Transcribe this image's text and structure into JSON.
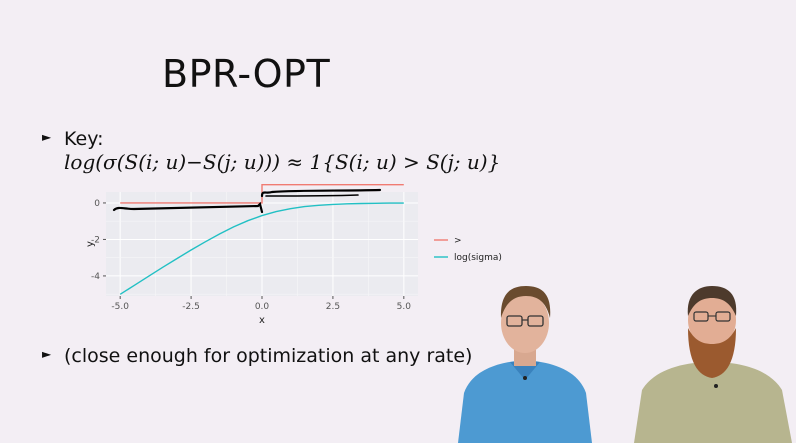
{
  "slide": {
    "title": "BPR-OPT",
    "bullet1_label": "Key:",
    "formula": "log(σ(S(i; u)−S(j; u))) ≈ 1{S(i; u) > S(j; u)}",
    "bullet2_text": "(close enough for optimization at any rate)",
    "bullet_marker": "►"
  },
  "chart_data": {
    "type": "line",
    "title": "",
    "xlabel": "x",
    "ylabel": "y",
    "xlim": [
      -5.5,
      5.5
    ],
    "ylim": [
      -5.1,
      0.6
    ],
    "x_ticks": [
      "-5.0",
      "-2.5",
      "0.0",
      "2.5",
      "5.0"
    ],
    "x_tick_values": [
      -5.0,
      -2.5,
      0.0,
      2.5,
      5.0
    ],
    "y_ticks": [
      "0",
      "-2",
      "-4"
    ],
    "y_tick_values": [
      0,
      -2,
      -4
    ],
    "series": [
      {
        "name": ">",
        "color": "#f07b72",
        "x": [
          -5,
          -4,
          -3,
          -2,
          -1,
          0,
          0,
          1,
          2,
          3,
          4,
          5
        ],
        "y": [
          0,
          0,
          0,
          0,
          0,
          0,
          1,
          1,
          1,
          1,
          1,
          1
        ]
      },
      {
        "name": "log(sigma)",
        "color": "#22c0c4",
        "x": [
          -5,
          -4.5,
          -4,
          -3.5,
          -3,
          -2.5,
          -2,
          -1.5,
          -1,
          -0.5,
          0,
          0.5,
          1,
          1.5,
          2,
          2.5,
          3,
          3.5,
          4,
          4.5,
          5
        ],
        "y": [
          -5.007,
          -4.511,
          -4.018,
          -3.529,
          -3.049,
          -2.579,
          -2.127,
          -1.701,
          -1.313,
          -0.974,
          -0.693,
          -0.474,
          -0.313,
          -0.201,
          -0.127,
          -0.079,
          -0.049,
          -0.03,
          -0.018,
          -0.011,
          -0.007
        ]
      }
    ],
    "legend": {
      "position": "right",
      "entries": [
        ">",
        "log(sigma)"
      ]
    }
  },
  "colors": {
    "background": "#f3eef4",
    "plot_panel": "#ebebf0",
    "grid": "#ffffff",
    "ink": "#111111"
  }
}
